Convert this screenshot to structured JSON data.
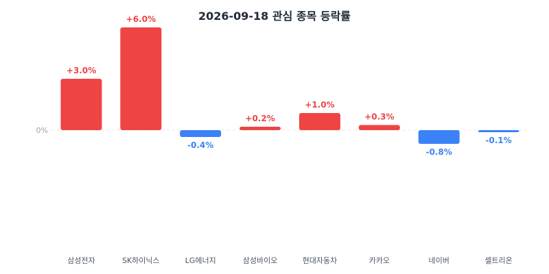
{
  "chart_data": {
    "type": "bar",
    "title": "2026-09-18 관심 종목 등락률",
    "categories": [
      "삼성전자",
      "SK하이닉스",
      "LG에너지",
      "삼성바이오",
      "현대자동차",
      "카카오",
      "네이버",
      "셀트리온"
    ],
    "values": [
      3.0,
      6.0,
      -0.4,
      0.2,
      1.0,
      0.3,
      -0.8,
      -0.1
    ],
    "value_labels": [
      "+3.0%",
      "+6.0%",
      "-0.4%",
      "+0.2%",
      "+1.0%",
      "+0.3%",
      "-0.8%",
      "-0.1%"
    ],
    "zero_label": "0%",
    "ylim": [
      -7.0,
      6.5
    ],
    "grid": false,
    "colors": {
      "positive": "#ef4444",
      "negative": "#3b82f6",
      "baseline": "#e5e7eb"
    }
  }
}
